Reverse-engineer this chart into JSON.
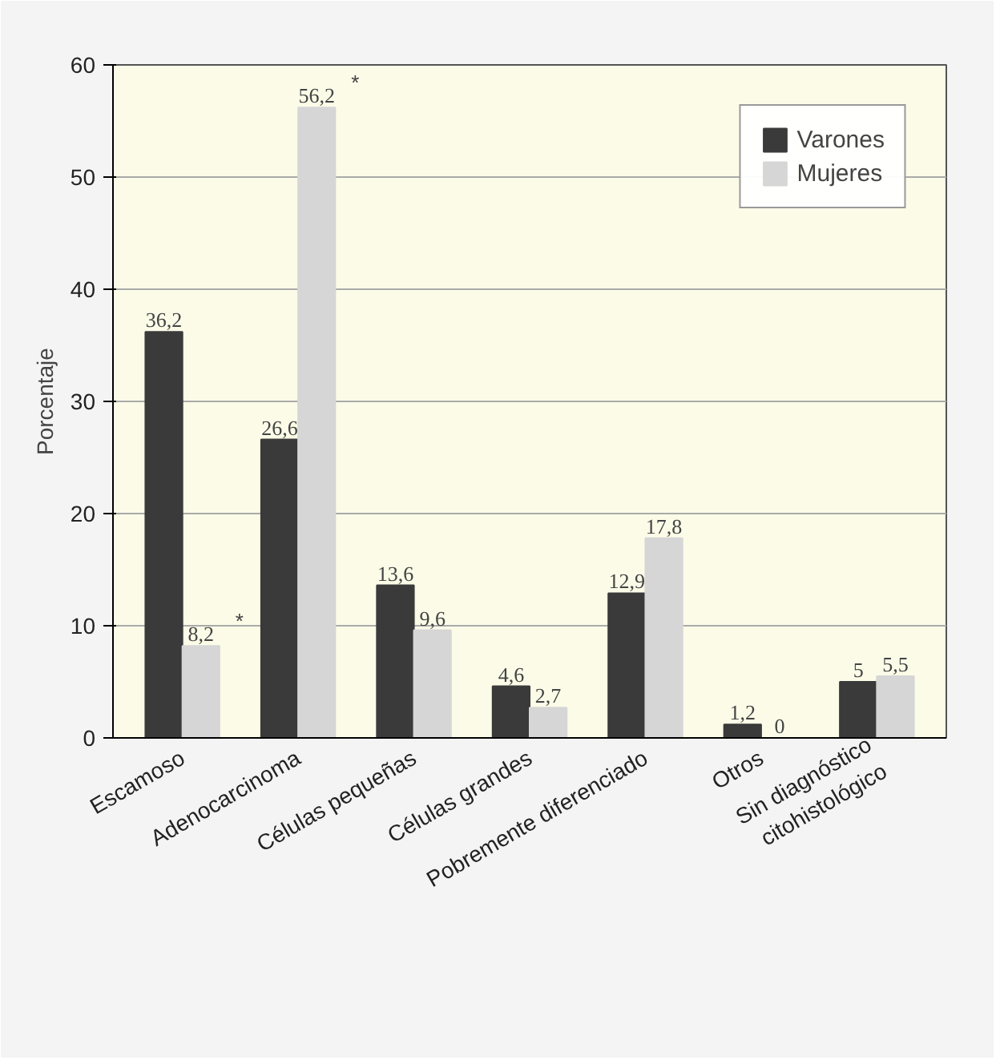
{
  "chart_data": {
    "type": "bar",
    "ylabel": "Porcentaje",
    "categories": [
      "Escamoso",
      "Adenocarcinoma",
      "Células pequeñas",
      "Células grandes",
      "Pobremente diferenciado",
      "Otros",
      "Sin diagnóstico\ncitohistológico"
    ],
    "series": [
      {
        "name": "Varones",
        "color": "#3a3a3a",
        "values": [
          36.2,
          26.6,
          13.6,
          4.6,
          12.9,
          1.2,
          5
        ],
        "value_labels": [
          "36,2",
          "26,6",
          "13,6",
          "4,6",
          "12,9",
          "1,2",
          "5"
        ]
      },
      {
        "name": "Mujeres",
        "color": "#d6d6d6",
        "values": [
          8.2,
          56.2,
          9.6,
          2.7,
          17.8,
          0,
          5.5
        ],
        "value_labels": [
          "8,2",
          "56,2",
          "9,6",
          "2,7",
          "17,8",
          "0",
          "5,5"
        ]
      }
    ],
    "annotations": [
      {
        "text": "*",
        "x": "Escamoso",
        "y": 8.2
      },
      {
        "text": "*",
        "x": "Adenocarcinoma",
        "y": 56.2
      }
    ],
    "ylim": [
      0,
      60
    ],
    "yticks": [
      0,
      10,
      20,
      30,
      40,
      50,
      60
    ],
    "grid": "y",
    "legend": "top right"
  }
}
